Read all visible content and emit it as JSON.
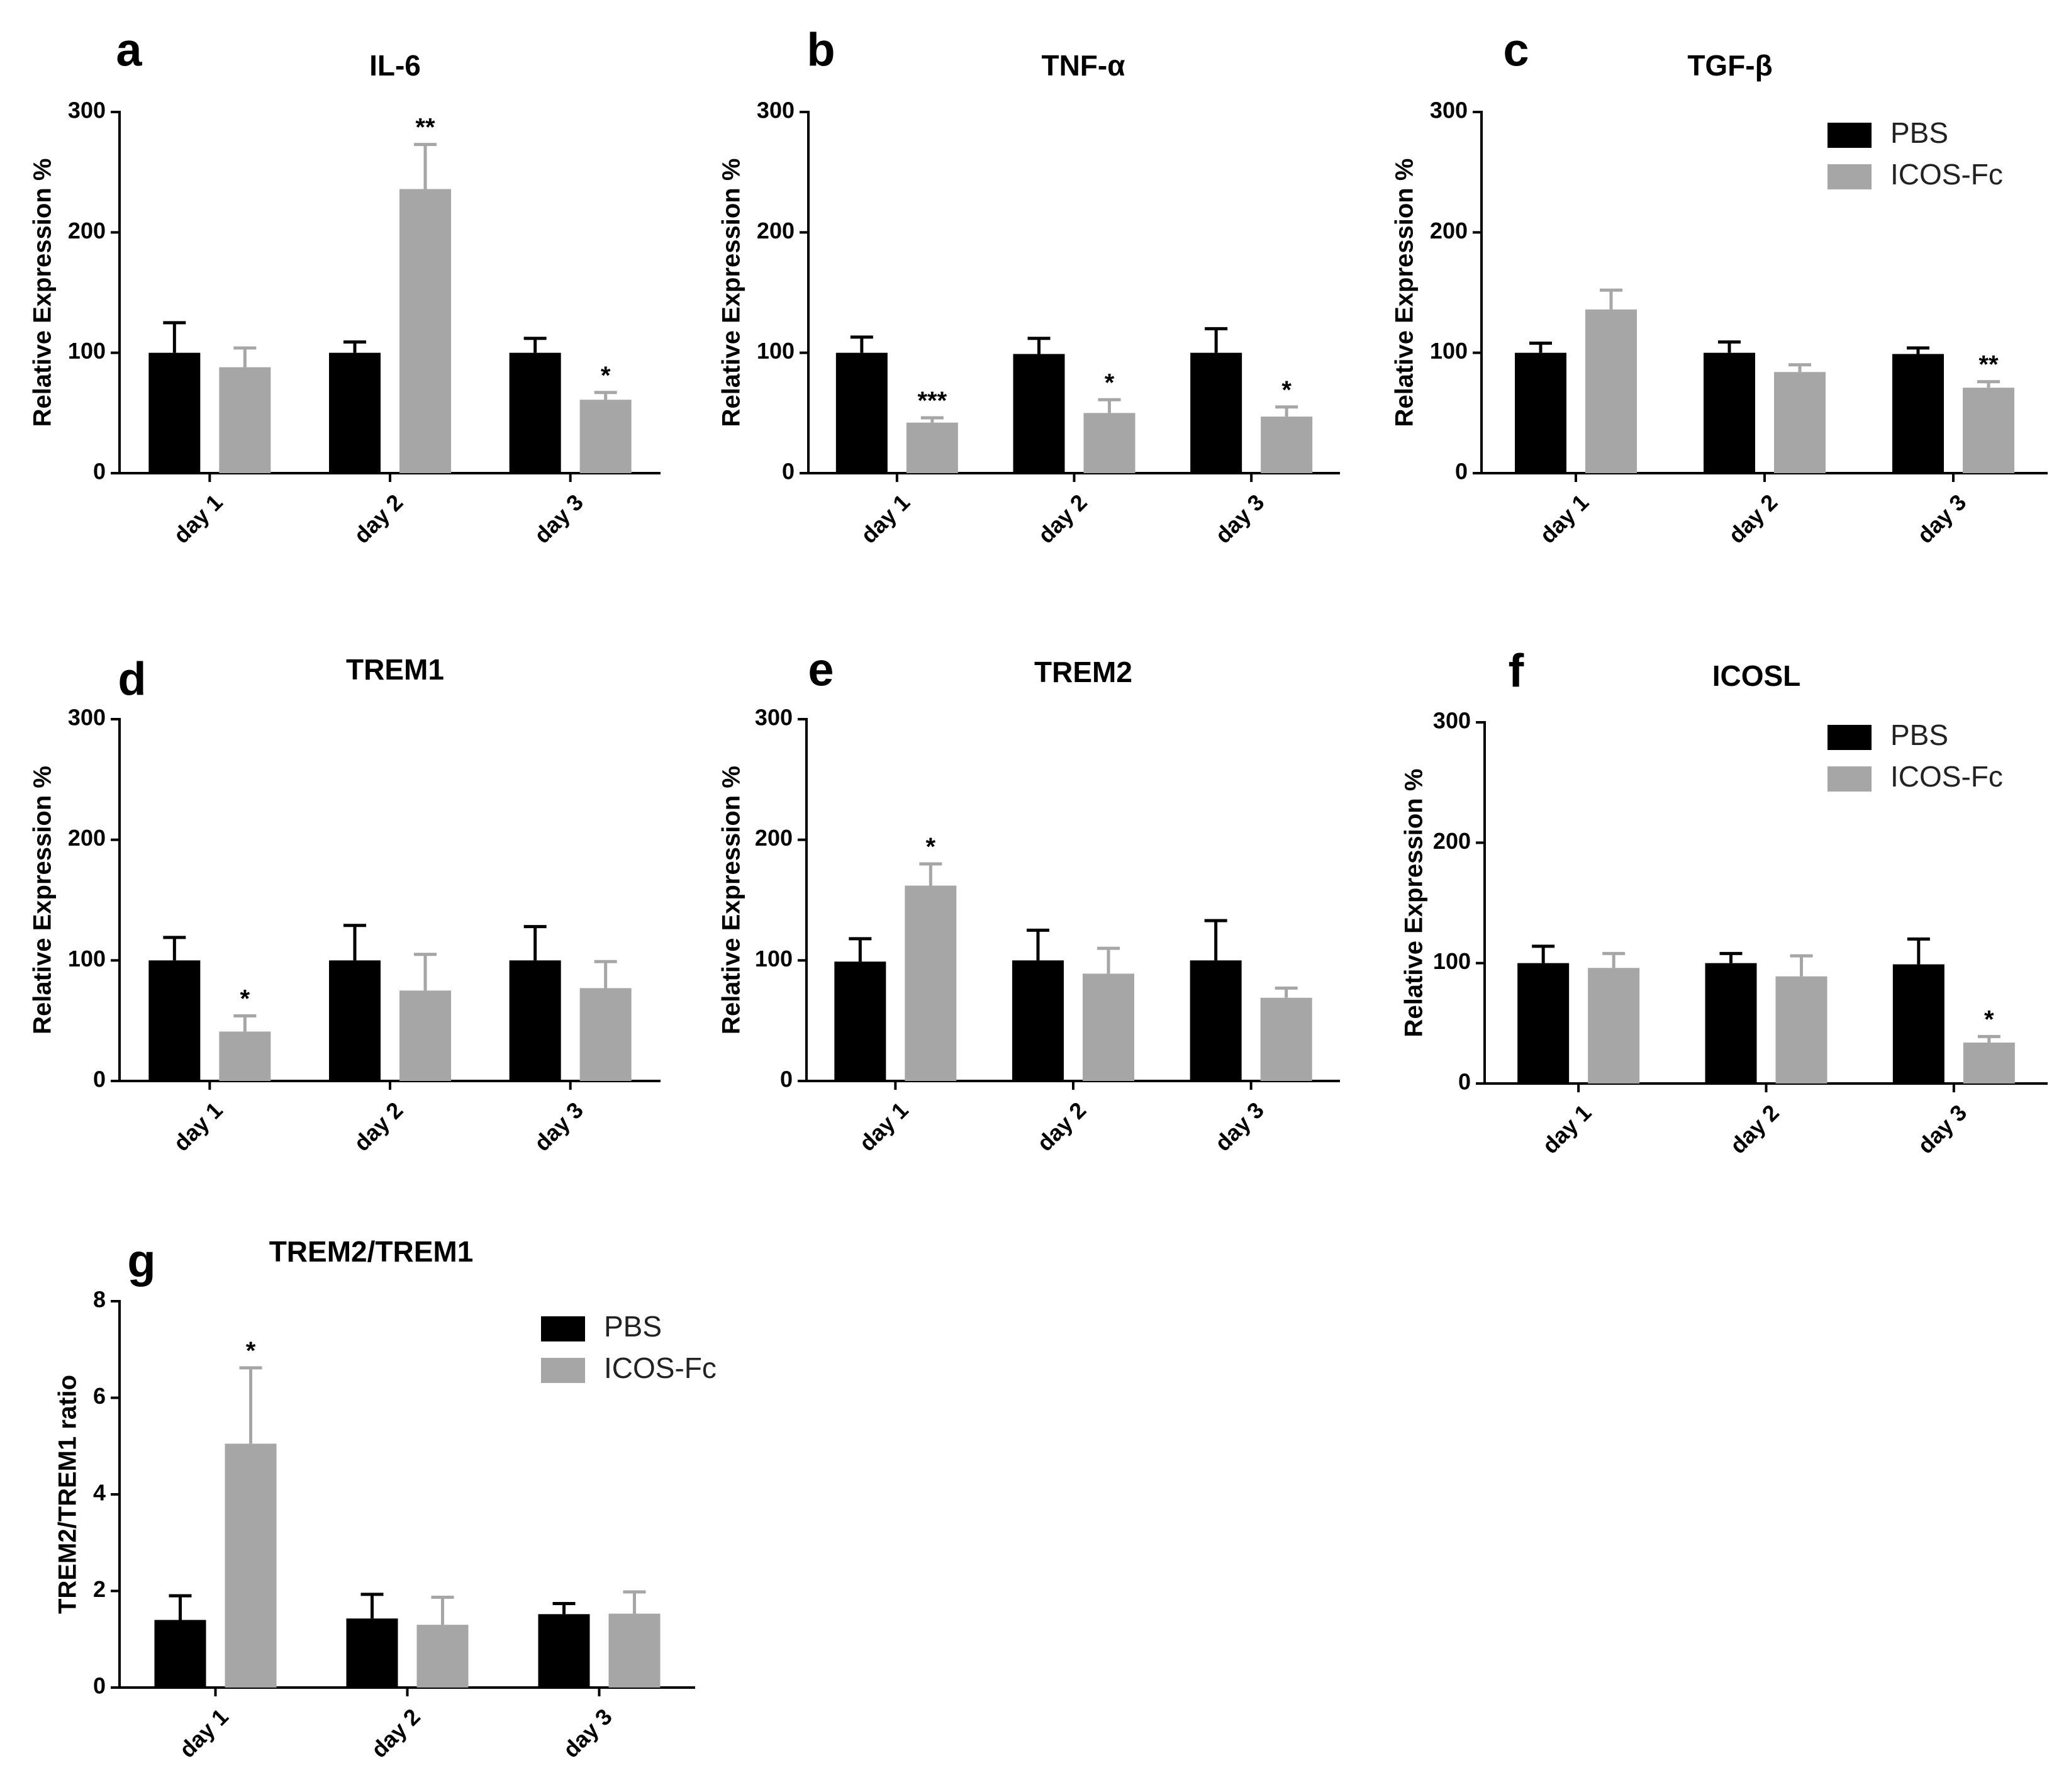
{
  "colors": {
    "pbs": "#000000",
    "icos": "#a6a6a6",
    "axis": "#000000"
  },
  "legend_series": [
    "PBS",
    "ICOS-Fc"
  ],
  "chart_data": [
    {
      "panel": "a",
      "title": "IL-6",
      "type": "bar",
      "categories": [
        "day 1",
        "day 2",
        "day 3"
      ],
      "ylabel": "Relative Expression %",
      "ylim": [
        0,
        300
      ],
      "yticks": [
        0,
        100,
        200,
        300
      ],
      "ytick_labels": [
        "0",
        "100",
        "200",
        "300"
      ],
      "legend": false,
      "series": [
        {
          "name": "PBS",
          "values": [
            100,
            100,
            100
          ],
          "errors": [
            25,
            9,
            12
          ],
          "sig": [
            "",
            "",
            ""
          ]
        },
        {
          "name": "ICOS-Fc",
          "values": [
            88,
            236,
            61
          ],
          "errors": [
            16,
            37,
            6
          ],
          "sig": [
            "",
            "**",
            "*"
          ]
        }
      ]
    },
    {
      "panel": "b",
      "title": "TNF-α",
      "type": "bar",
      "categories": [
        "day 1",
        "day 2",
        "day 3"
      ],
      "ylabel": "Relative Expression %",
      "ylim": [
        0,
        300
      ],
      "yticks": [
        0,
        100,
        200,
        300
      ],
      "ytick_labels": [
        "0",
        "100",
        "200",
        "300"
      ],
      "legend": false,
      "series": [
        {
          "name": "PBS",
          "values": [
            100,
            99,
            100
          ],
          "errors": [
            13,
            13,
            20
          ],
          "sig": [
            "",
            "",
            ""
          ]
        },
        {
          "name": "ICOS-Fc",
          "values": [
            42,
            50,
            47
          ],
          "errors": [
            4,
            11,
            8
          ],
          "sig": [
            "***",
            "*",
            "*"
          ]
        }
      ]
    },
    {
      "panel": "c",
      "title": "TGF-β",
      "type": "bar",
      "categories": [
        "day 1",
        "day 2",
        "day 3"
      ],
      "ylabel": "Relative Expression %",
      "ylim": [
        0,
        300
      ],
      "yticks": [
        0,
        100,
        200,
        300
      ],
      "ytick_labels": [
        "0",
        "100",
        "200",
        "300"
      ],
      "legend": true,
      "legend_position": "top-right",
      "series": [
        {
          "name": "PBS",
          "values": [
            100,
            100,
            99
          ],
          "errors": [
            8,
            9,
            5
          ],
          "sig": [
            "",
            "",
            ""
          ]
        },
        {
          "name": "ICOS-Fc",
          "values": [
            136,
            84,
            71
          ],
          "errors": [
            16,
            6,
            5
          ],
          "sig": [
            "",
            "",
            "**"
          ]
        }
      ]
    },
    {
      "panel": "d",
      "title": "TREM1",
      "type": "bar",
      "categories": [
        "day 1",
        "day 2",
        "day 3"
      ],
      "ylabel": "Relative Expression %",
      "ylim": [
        0,
        300
      ],
      "yticks": [
        0,
        100,
        200,
        300
      ],
      "ytick_labels": [
        "0",
        "100",
        "200",
        "300"
      ],
      "legend": false,
      "series": [
        {
          "name": "PBS",
          "values": [
            100,
            100,
            100
          ],
          "errors": [
            19,
            29,
            28
          ],
          "sig": [
            "",
            "",
            ""
          ]
        },
        {
          "name": "ICOS-Fc",
          "values": [
            41,
            75,
            77
          ],
          "errors": [
            13,
            30,
            22
          ],
          "sig": [
            "*",
            "",
            ""
          ]
        }
      ]
    },
    {
      "panel": "e",
      "title": "TREM2",
      "type": "bar",
      "categories": [
        "day 1",
        "day 2",
        "day 3"
      ],
      "ylabel": "Relative Expression %",
      "ylim": [
        0,
        300
      ],
      "yticks": [
        0,
        100,
        200,
        300
      ],
      "ytick_labels": [
        "0",
        "100",
        "200",
        "300"
      ],
      "legend": false,
      "series": [
        {
          "name": "PBS",
          "values": [
            99,
            100,
            100
          ],
          "errors": [
            19,
            25,
            33
          ],
          "sig": [
            "",
            "",
            ""
          ]
        },
        {
          "name": "ICOS-Fc",
          "values": [
            162,
            89,
            69
          ],
          "errors": [
            18,
            21,
            8
          ],
          "sig": [
            "*",
            "",
            ""
          ]
        }
      ]
    },
    {
      "panel": "f",
      "title": "ICOSL",
      "type": "bar",
      "categories": [
        "day 1",
        "day 2",
        "day 3"
      ],
      "ylabel": "Relative Expression %",
      "ylim": [
        0,
        300
      ],
      "yticks": [
        0,
        100,
        200,
        300
      ],
      "ytick_labels": [
        "0",
        "100",
        "200",
        "300"
      ],
      "legend": true,
      "legend_position": "top-right",
      "series": [
        {
          "name": "PBS",
          "values": [
            100,
            100,
            99
          ],
          "errors": [
            14,
            8,
            21
          ],
          "sig": [
            "",
            "",
            ""
          ]
        },
        {
          "name": "ICOS-Fc",
          "values": [
            96,
            89,
            34
          ],
          "errors": [
            12,
            17,
            5
          ],
          "sig": [
            "",
            "",
            "*"
          ]
        }
      ]
    },
    {
      "panel": "g",
      "title": "TREM2/TREM1",
      "type": "bar",
      "categories": [
        "day 1",
        "day 2",
        "day 3"
      ],
      "ylabel": "TREM2/TREM1 ratio",
      "ylim": [
        0,
        8
      ],
      "yticks": [
        0,
        2,
        4,
        6,
        8
      ],
      "ytick_labels": [
        "0",
        "2",
        "4",
        "6",
        "8"
      ],
      "legend": true,
      "legend_position": "top-right",
      "series": [
        {
          "name": "PBS",
          "values": [
            1.4,
            1.43,
            1.52
          ],
          "errors": [
            0.5,
            0.5,
            0.22
          ],
          "sig": [
            "",
            "",
            ""
          ]
        },
        {
          "name": "ICOS-Fc",
          "values": [
            5.05,
            1.3,
            1.53
          ],
          "errors": [
            1.57,
            0.57,
            0.45
          ],
          "sig": [
            "*",
            "",
            ""
          ]
        }
      ]
    }
  ]
}
